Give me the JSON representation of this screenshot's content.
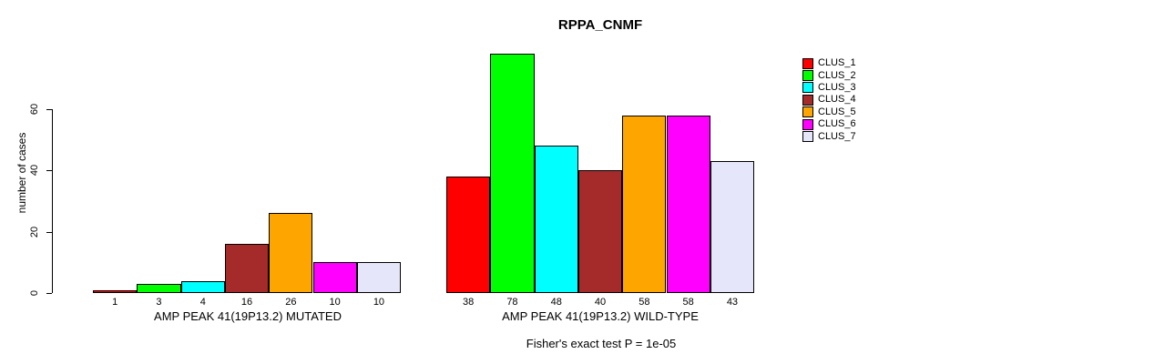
{
  "chart_data": {
    "type": "bar",
    "title": "RPPA_CNMF",
    "ylabel": "number of cases",
    "xlabel": "",
    "yticks": [
      0,
      20,
      40,
      60
    ],
    "ylim": [
      0,
      80
    ],
    "grid": false,
    "legend_position": "top-right",
    "groups": [
      {
        "label": "AMP PEAK 41(19P13.2) MUTATED",
        "values": [
          1,
          3,
          4,
          16,
          26,
          10,
          10
        ]
      },
      {
        "label": "AMP PEAK 41(19P13.2) WILD-TYPE",
        "values": [
          38,
          78,
          48,
          40,
          58,
          58,
          43
        ]
      }
    ],
    "legend": {
      "items": [
        {
          "label": "CLUS_1",
          "color": "#FF0000"
        },
        {
          "label": "CLUS_2",
          "color": "#00FF00"
        },
        {
          "label": "CLUS_3",
          "color": "#00FFFF"
        },
        {
          "label": "CLUS_4",
          "color": "#A52A2A"
        },
        {
          "label": "CLUS_5",
          "color": "#FFA500"
        },
        {
          "label": "CLUS_6",
          "color": "#FF00FF"
        },
        {
          "label": "CLUS_7",
          "color": "#E6E6FA"
        }
      ]
    },
    "footer": "Fisher's exact test P = 1e-05",
    "text_color": "#000000",
    "axis_color": "#000000",
    "background_color": "#FFFFFF"
  }
}
